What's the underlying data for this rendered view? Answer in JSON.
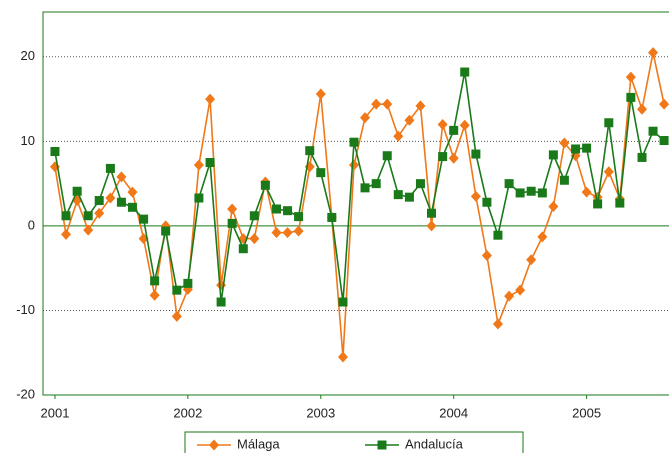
{
  "chart_data": {
    "type": "line",
    "x": [
      2001,
      2001.083,
      2001.167,
      2001.25,
      2001.333,
      2001.417,
      2001.5,
      2001.583,
      2001.667,
      2001.75,
      2001.833,
      2001.917,
      2002,
      2002.083,
      2002.167,
      2002.25,
      2002.333,
      2002.417,
      2002.5,
      2002.583,
      2002.667,
      2002.75,
      2002.833,
      2002.917,
      2003,
      2003.083,
      2003.167,
      2003.25,
      2003.333,
      2003.417,
      2003.5,
      2003.583,
      2003.667,
      2003.75,
      2003.833,
      2003.917,
      2004,
      2004.083,
      2004.167,
      2004.25,
      2004.333,
      2004.417,
      2004.5,
      2004.583,
      2004.667,
      2004.75,
      2004.833,
      2004.917,
      2005,
      2005.083,
      2005.167,
      2005.25,
      2005.333,
      2005.417,
      2005.5,
      2005.583
    ],
    "series": [
      {
        "name": "Málaga",
        "color": "#f07818",
        "marker": "diamond",
        "values": [
          7,
          -1,
          3,
          -0.5,
          1.5,
          3.3,
          5.8,
          4,
          -1.5,
          -8.2,
          0,
          -10.7,
          -7.5,
          7.2,
          15,
          -7,
          2,
          -1.5,
          -1.5,
          5.2,
          -0.8,
          -0.8,
          -0.6,
          7,
          15.6,
          1,
          -15.5,
          7.2,
          12.8,
          14.4,
          14.4,
          10.6,
          12.5,
          14.2,
          0,
          12,
          8,
          11.9,
          3.5,
          -3.5,
          -11.6,
          -8.3,
          -7.6,
          -4,
          -1.3,
          2.3,
          9.8,
          8.3,
          4,
          3.4,
          6.4,
          3.2,
          17.6,
          13.8,
          20.5,
          14.4
        ]
      },
      {
        "name": "Andalucía",
        "color": "#1a7a1a",
        "marker": "square",
        "values": [
          8.8,
          1.2,
          4.1,
          1.2,
          3,
          6.8,
          2.8,
          2.2,
          0.8,
          -6.5,
          -0.6,
          -7.6,
          -6.8,
          3.3,
          7.5,
          -9,
          0.3,
          -2.7,
          1.2,
          4.8,
          2,
          1.8,
          1.1,
          8.9,
          6.3,
          1,
          -9,
          9.9,
          4.5,
          5,
          8.3,
          3.7,
          3.4,
          5,
          1.5,
          8.2,
          11.3,
          18.2,
          8.5,
          2.8,
          -1.1,
          5,
          3.9,
          4.1,
          3.9,
          8.4,
          5.4,
          9.1,
          9.2,
          2.6,
          12.2,
          2.7,
          15.2,
          8.1,
          11.2,
          10.1
        ]
      }
    ],
    "xlim": [
      2000.91,
      2005.62
    ],
    "xticks": [
      2001,
      2002,
      2003,
      2004,
      2005
    ],
    "ylim": [
      -20,
      25.3
    ],
    "yticks": [
      -20,
      -10,
      0,
      10,
      20
    ],
    "grid": true,
    "legend": "bottom"
  }
}
